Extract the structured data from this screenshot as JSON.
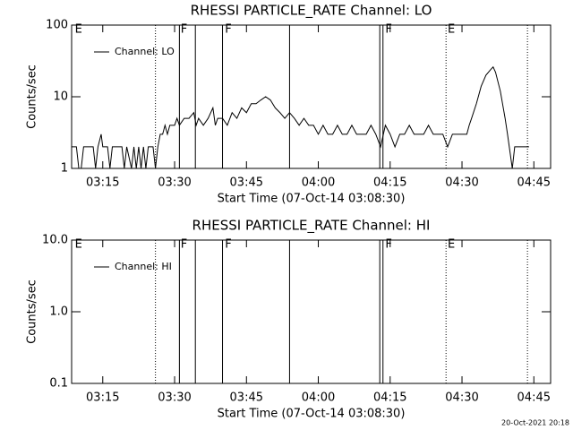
{
  "chart_data": [
    {
      "type": "line",
      "title": "RHESSI PARTICLE_RATE Channel: LO",
      "xlabel": "Start Time (07-Oct-14 03:08:30)",
      "ylabel": "Counts/sec",
      "xlim": [
        "03:08:30",
        "04:48:30"
      ],
      "xticks": [
        "03:15",
        "03:30",
        "03:45",
        "04:00",
        "04:15",
        "04:30",
        "04:45"
      ],
      "ylim": [
        1,
        100
      ],
      "yticks": [
        1,
        10,
        100
      ],
      "log_y": true,
      "legend": "top-left",
      "x": [
        "03:08:30",
        "03:09:30",
        "03:10:00",
        "03:10:30",
        "03:11:00",
        "03:13:00",
        "03:13:30",
        "03:14:00",
        "03:14:40",
        "03:15:00",
        "03:16:00",
        "03:16:30",
        "03:17:00",
        "03:19:00",
        "03:19:30",
        "03:20:00",
        "03:21:00",
        "03:21:30",
        "03:22:00",
        "03:22:30",
        "03:23:00",
        "03:23:30",
        "03:24:00",
        "03:24:30",
        "03:25:30",
        "03:26:00",
        "03:26:30",
        "03:27:00",
        "03:27:30",
        "03:28:00",
        "03:28:30",
        "03:29:00",
        "03:30:00",
        "03:30:30",
        "03:31:00",
        "03:32:00",
        "03:33:00",
        "03:34:00",
        "03:34:30",
        "03:35:00",
        "03:36:00",
        "03:37:00",
        "03:38:00",
        "03:38:30",
        "03:39:00",
        "03:40:00",
        "03:41:00",
        "03:42:00",
        "03:43:00",
        "03:44:00",
        "03:45:00",
        "03:46:00",
        "03:47:00",
        "03:48:00",
        "03:49:00",
        "03:50:00",
        "03:51:00",
        "03:52:00",
        "03:53:00",
        "03:54:00",
        "03:55:00",
        "03:56:00",
        "03:57:00",
        "03:58:00",
        "03:59:00",
        "04:00:00",
        "04:01:00",
        "04:02:00",
        "04:03:00",
        "04:04:00",
        "04:05:00",
        "04:06:00",
        "04:07:00",
        "04:08:00",
        "04:09:00",
        "04:10:00",
        "04:11:00",
        "04:12:00",
        "04:13:00",
        "04:14:00",
        "04:15:00",
        "04:16:00",
        "04:17:00",
        "04:18:00",
        "04:19:00",
        "04:20:00",
        "04:22:00",
        "04:23:00",
        "04:24:00",
        "04:26:00",
        "04:27:00",
        "04:28:00",
        "04:30:00",
        "04:31:00",
        "04:31:30",
        "04:32:00",
        "04:33:00",
        "04:34:00",
        "04:35:00",
        "04:36:00",
        "04:36:30",
        "04:37:00",
        "04:38:00",
        "04:39:00",
        "04:39:30",
        "04:40:30",
        "04:41:00",
        "04:44:00"
      ],
      "series": [
        {
          "name": "Channel: LO",
          "color": "#000000",
          "values": [
            2,
            2,
            1,
            1,
            2,
            2,
            1,
            2,
            3,
            2,
            2,
            1,
            2,
            2,
            1,
            2,
            1,
            2,
            1,
            2,
            1,
            2,
            1,
            2,
            2,
            1,
            2,
            3,
            3,
            4,
            3,
            4,
            4,
            5,
            4,
            5,
            5,
            6,
            4,
            5,
            4,
            5,
            7,
            4,
            5,
            5,
            4,
            6,
            5,
            7,
            6,
            8,
            8,
            9,
            10,
            9,
            7,
            6,
            5,
            6,
            5,
            4,
            5,
            4,
            4,
            3,
            4,
            3,
            3,
            4,
            3,
            3,
            4,
            3,
            3,
            3,
            4,
            3,
            2,
            4,
            3,
            2,
            3,
            3,
            4,
            3,
            3,
            4,
            3,
            3,
            2,
            3,
            3,
            3,
            4,
            5,
            8,
            14,
            20,
            24,
            26,
            22,
            12,
            5,
            3,
            1,
            2,
            2
          ]
        }
      ],
      "lines": [
        {
          "x": "03:26:00",
          "style": "dotted"
        },
        {
          "x": "03:31:00",
          "style": "solid"
        },
        {
          "x": "03:34:20",
          "style": "solid"
        },
        {
          "x": "03:40:00",
          "style": "solid"
        },
        {
          "x": "03:54:00",
          "style": "solid"
        },
        {
          "x": "04:12:50",
          "style": "solid"
        },
        {
          "x": "04:13:30",
          "style": "solid"
        },
        {
          "x": "04:26:40",
          "style": "dotted"
        },
        {
          "x": "04:43:40",
          "style": "dotted"
        }
      ],
      "labels": [
        {
          "x": "03:09:10",
          "text": "E"
        },
        {
          "x": "03:31:15",
          "text": "F"
        },
        {
          "x": "03:40:30",
          "text": "F"
        },
        {
          "x": "04:14:00",
          "text": "F"
        },
        {
          "x": "04:27:00",
          "text": "E"
        }
      ]
    },
    {
      "type": "line",
      "title": "RHESSI PARTICLE_RATE Channel: HI",
      "xlabel": "Start Time (07-Oct-14 03:08:30)",
      "ylabel": "Counts/sec",
      "xlim": [
        "03:08:30",
        "04:48:30"
      ],
      "xticks": [
        "03:15",
        "03:30",
        "03:45",
        "04:00",
        "04:15",
        "04:30",
        "04:45"
      ],
      "ylim": [
        0.1,
        10
      ],
      "yticks": [
        0.1,
        {
          "value": 1,
          "label": "1.0"
        },
        {
          "value": 10,
          "label": "10.0"
        }
      ],
      "log_y": true,
      "legend": "top-left",
      "x": [],
      "series": [
        {
          "name": "Channel: HI",
          "color": "#000000",
          "values": []
        }
      ],
      "lines": [
        {
          "x": "03:26:00",
          "style": "dotted"
        },
        {
          "x": "03:31:00",
          "style": "solid"
        },
        {
          "x": "03:34:20",
          "style": "solid"
        },
        {
          "x": "03:40:00",
          "style": "solid"
        },
        {
          "x": "03:54:00",
          "style": "solid"
        },
        {
          "x": "04:12:50",
          "style": "solid"
        },
        {
          "x": "04:13:30",
          "style": "solid"
        },
        {
          "x": "04:26:40",
          "style": "dotted"
        },
        {
          "x": "04:43:40",
          "style": "dotted"
        }
      ],
      "labels": [
        {
          "x": "03:09:10",
          "text": "E"
        },
        {
          "x": "03:31:15",
          "text": "F"
        },
        {
          "x": "03:40:30",
          "text": "F"
        },
        {
          "x": "04:14:00",
          "text": "F"
        },
        {
          "x": "04:27:00",
          "text": "E"
        }
      ]
    }
  ],
  "footer": "20-Oct-2021 20:18"
}
